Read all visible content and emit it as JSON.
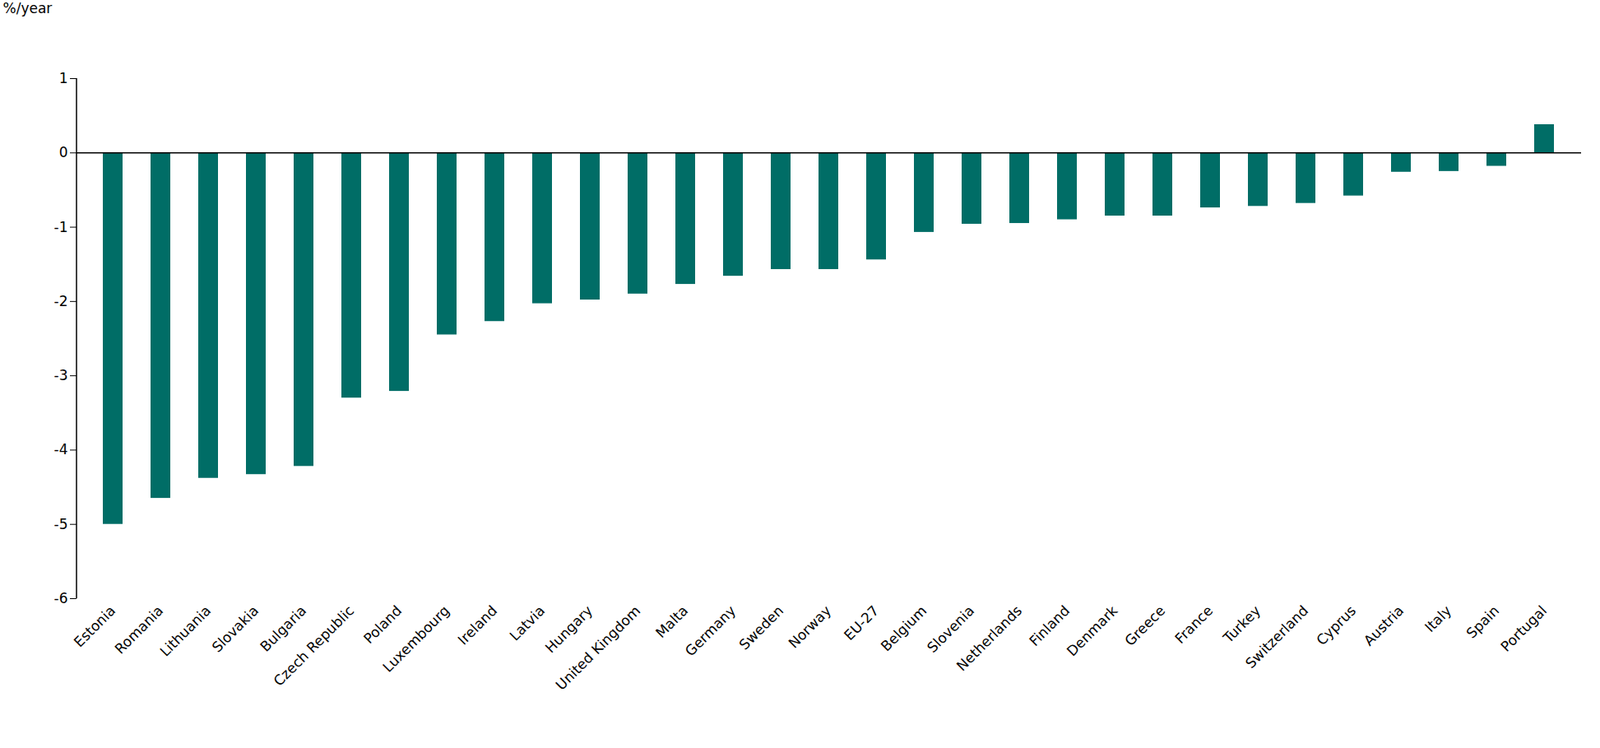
{
  "chart_data": {
    "type": "bar",
    "y_label": "%/year",
    "categories": [
      "Estonia",
      "Romania",
      "Lithuania",
      "Slovakia",
      "Bulgaria",
      "Czech Republic",
      "Poland",
      "Luxembourg",
      "Ireland",
      "Latvia",
      "Hungary",
      "United Kingdom",
      "Malta",
      "Germany",
      "Sweden",
      "Norway",
      "EU-27",
      "Belgium",
      "Slovenia",
      "Netherlands",
      "Finland",
      "Denmark",
      "Greece",
      "France",
      "Turkey",
      "Switzerland",
      "Cyprus",
      "Austria",
      "Italy",
      "Spain",
      "Portugal"
    ],
    "values": [
      -5.0,
      -4.65,
      -4.38,
      -4.33,
      -4.22,
      -3.3,
      -3.21,
      -2.45,
      -2.27,
      -2.03,
      -1.98,
      -1.9,
      -1.77,
      -1.66,
      -1.57,
      -1.57,
      -1.44,
      -1.07,
      -0.96,
      -0.95,
      -0.9,
      -0.85,
      -0.85,
      -0.74,
      -0.72,
      -0.68,
      -0.58,
      -0.26,
      -0.25,
      -0.18,
      0.38
    ],
    "color": "#006d66",
    "ylim": [
      -6,
      1
    ],
    "yticks": [
      -6,
      -5,
      -4,
      -3,
      -2,
      -1,
      0,
      1
    ],
    "grid": false
  }
}
